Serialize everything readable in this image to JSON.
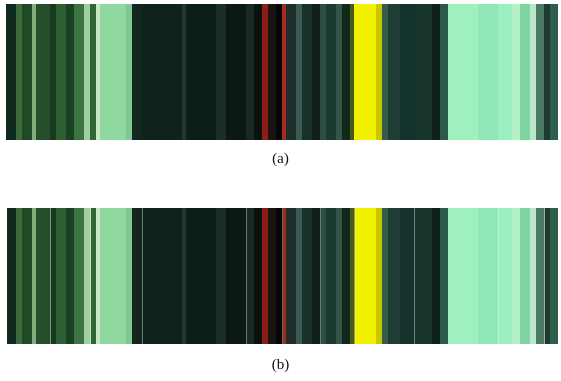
{
  "figure": {
    "panels": [
      {
        "caption": "(a)"
      },
      {
        "caption": "(b)"
      }
    ],
    "colors": {
      "dark_green": "#0f2a1c",
      "forest_green": "#1f4a25",
      "pale_green": "#8fd9a0",
      "mint": "#9ef0bf",
      "teal_dark": "#14322c",
      "red_accent": "#8a1e1a",
      "yellow": "#f2f200",
      "black": "#050806"
    }
  }
}
